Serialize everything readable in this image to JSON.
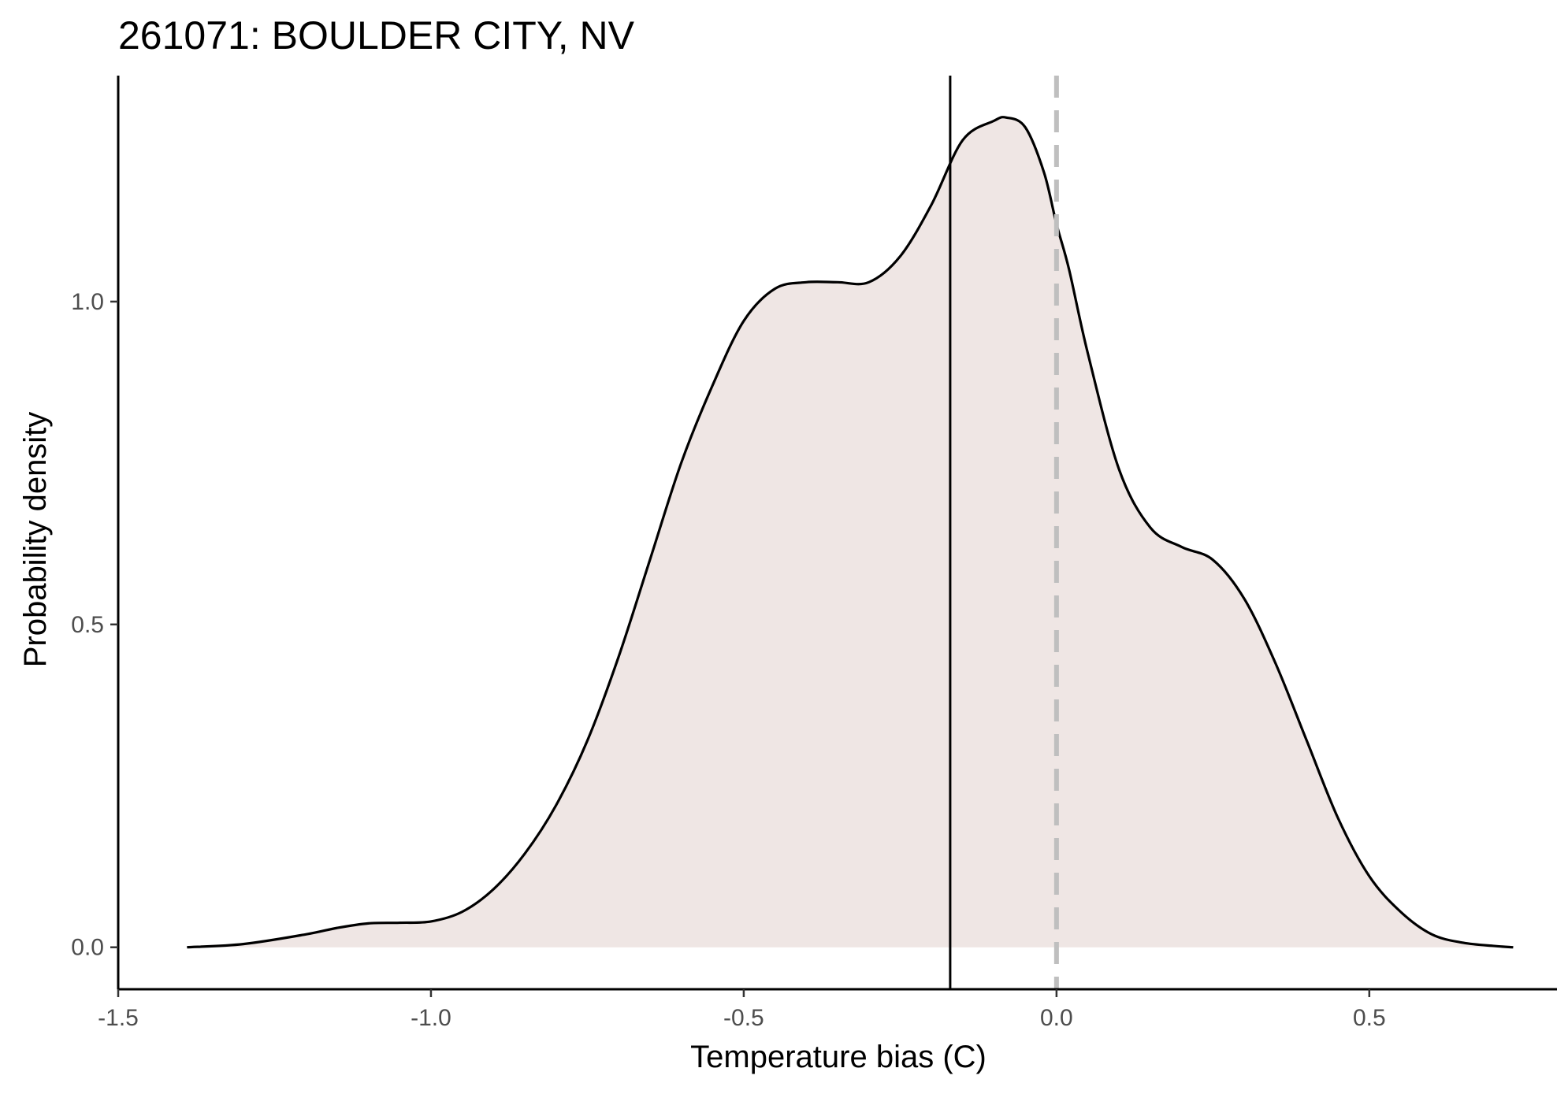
{
  "chart_data": {
    "type": "area",
    "title": "261071: BOULDER CITY, NV",
    "xlabel": "Temperature bias (C)",
    "ylabel": "Probability density",
    "xlim": [
      -1.5,
      0.8
    ],
    "ylim": [
      -0.065,
      1.35
    ],
    "x_ticks": [
      -1.5,
      -1.0,
      -0.5,
      0.0,
      0.5
    ],
    "x_tick_labels": [
      "-1.5",
      "-1.0",
      "-0.5",
      "0.0",
      "0.5"
    ],
    "y_ticks": [
      0.0,
      0.5,
      1.0
    ],
    "y_tick_labels": [
      "0.0",
      "0.5",
      "1.0"
    ],
    "grid": false,
    "legend": "none",
    "fill_color": "#efe6e4",
    "line_color": "#000000",
    "series": [
      {
        "x": [
          -1.39,
          -1.3,
          -1.2,
          -1.15,
          -1.1,
          -1.05,
          -1.0,
          -0.95,
          -0.9,
          -0.85,
          -0.8,
          -0.75,
          -0.7,
          -0.65,
          -0.6,
          -0.55,
          -0.5,
          -0.45,
          -0.4,
          -0.35,
          -0.3,
          -0.25,
          -0.2,
          -0.15,
          -0.1,
          -0.08,
          -0.05,
          -0.02,
          0.0,
          0.02,
          0.05,
          0.1,
          0.15,
          0.2,
          0.25,
          0.3,
          0.35,
          0.4,
          0.45,
          0.5,
          0.55,
          0.6,
          0.65,
          0.7,
          0.73
        ],
        "y": [
          0.0,
          0.005,
          0.02,
          0.03,
          0.037,
          0.038,
          0.04,
          0.055,
          0.09,
          0.145,
          0.22,
          0.32,
          0.45,
          0.6,
          0.75,
          0.87,
          0.97,
          1.02,
          1.03,
          1.03,
          1.03,
          1.07,
          1.15,
          1.25,
          1.28,
          1.285,
          1.27,
          1.2,
          1.12,
          1.05,
          0.92,
          0.74,
          0.65,
          0.62,
          0.6,
          0.54,
          0.44,
          0.32,
          0.2,
          0.11,
          0.055,
          0.02,
          0.007,
          0.002,
          0.0
        ]
      }
    ],
    "reference_lines": [
      {
        "x": -0.17,
        "style": "solid",
        "color": "#000000"
      },
      {
        "x": 0.0,
        "style": "dashed",
        "color": "#bfbfbf"
      }
    ]
  }
}
